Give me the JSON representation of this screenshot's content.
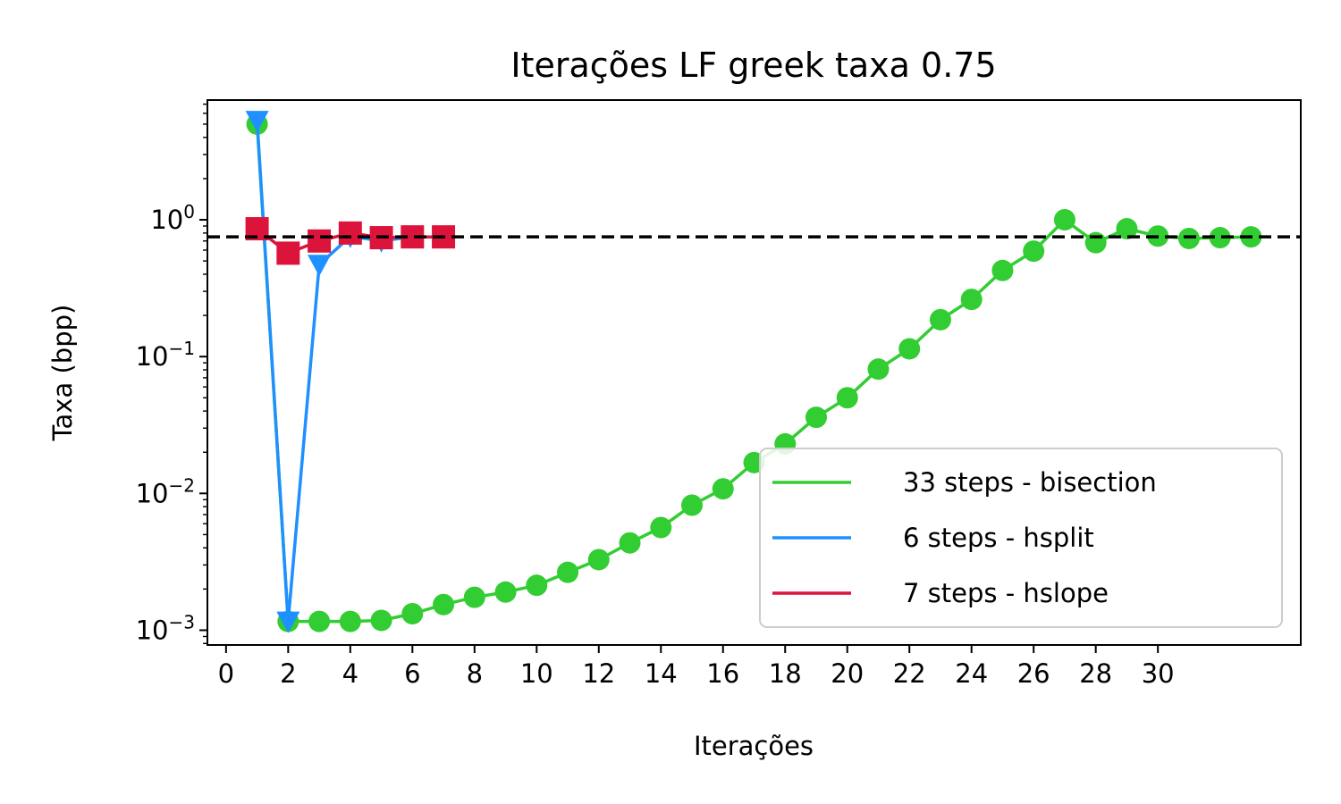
{
  "chart_data": {
    "type": "line",
    "title": "Iterações LF greek taxa 0.75",
    "xlabel": "Iterações",
    "ylabel": "Taxa (bpp)",
    "yscale": "log",
    "xlim": [
      -0.6,
      34.6
    ],
    "ylim": [
      0.00078,
      7.5
    ],
    "xticks": [
      0,
      2,
      4,
      6,
      8,
      10,
      12,
      14,
      16,
      18,
      20,
      22,
      24,
      26,
      28,
      30
    ],
    "yticks": [
      {
        "value": 0.001,
        "base": "10",
        "exp": "−3"
      },
      {
        "value": 0.01,
        "base": "10",
        "exp": "−2"
      },
      {
        "value": 0.1,
        "base": "10",
        "exp": "−1"
      },
      {
        "value": 1,
        "base": "10",
        "exp": "0"
      }
    ],
    "target": 0.75,
    "grid": false,
    "legend_position": "lower-right",
    "series": [
      {
        "name": "33 steps - bisection",
        "color": "#32cd32",
        "marker": "circle",
        "x": [
          1,
          2,
          3,
          4,
          5,
          6,
          7,
          8,
          9,
          10,
          11,
          12,
          13,
          14,
          15,
          16,
          17,
          18,
          19,
          20,
          21,
          22,
          23,
          24,
          25,
          26,
          27,
          28,
          29,
          30,
          31,
          32,
          33
        ],
        "y": [
          5.0,
          0.00116,
          0.00116,
          0.00116,
          0.00118,
          0.00132,
          0.00154,
          0.00174,
          0.0019,
          0.00213,
          0.00265,
          0.00328,
          0.00435,
          0.00563,
          0.0082,
          0.0108,
          0.0168,
          0.023,
          0.036,
          0.05,
          0.081,
          0.114,
          0.186,
          0.262,
          0.426,
          0.59,
          1.0,
          0.68,
          0.86,
          0.76,
          0.73,
          0.74,
          0.75
        ]
      },
      {
        "name": "6 steps - hsplit",
        "color": "#1e90ff",
        "marker": "triangle-down",
        "x": [
          1,
          2,
          3,
          4,
          5,
          6
        ],
        "y": [
          5.3,
          0.00116,
          0.47,
          0.755,
          0.7,
          0.75
        ]
      },
      {
        "name": "7 steps - hslope",
        "color": "#dc143c",
        "marker": "square",
        "x": [
          1,
          2,
          3,
          4,
          5,
          6,
          7
        ],
        "y": [
          0.86,
          0.57,
          0.7,
          0.8,
          0.74,
          0.75,
          0.75
        ]
      }
    ]
  }
}
